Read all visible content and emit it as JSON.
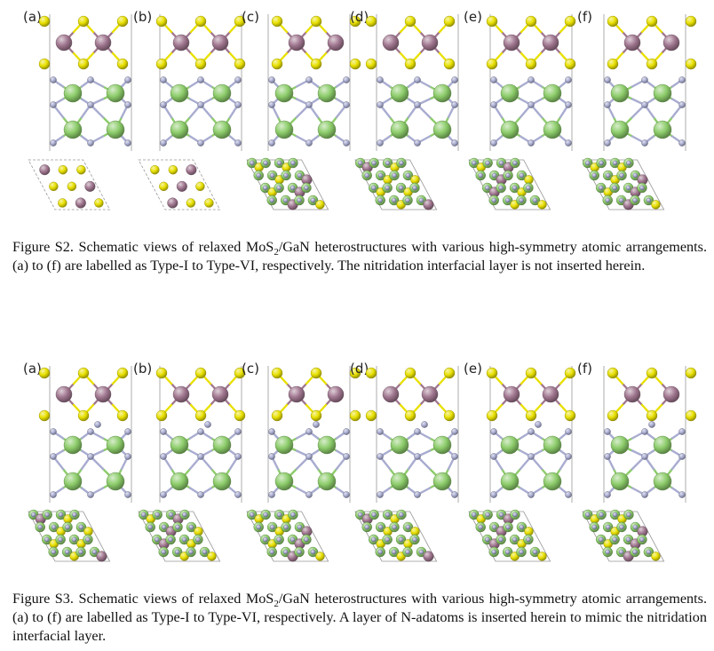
{
  "figure_s2": {
    "panel_labels": [
      "(a)",
      "(b)",
      "(c)",
      "(d)",
      "(e)",
      "(f)"
    ],
    "caption": {
      "lead": "Figure S2. Schematic views of relaxed MoS",
      "sub": "2",
      "rest": "/GaN heterostructures with various high-symmetry atomic arrangements. (a) to (f) are labelled as Type-I to Type-VI, respectively. The nitridation interfacial layer is not inserted herein."
    }
  },
  "figure_s3": {
    "panel_labels": [
      "(a)",
      "(b)",
      "(c)",
      "(d)",
      "(e)",
      "(f)"
    ],
    "caption": {
      "lead": "Figure S3. Schematic views of relaxed MoS",
      "sub": "2",
      "rest": "/GaN heterostructures with various high-symmetry atomic arrangements. (a) to (f) are labelled as Type-I to Type-VI, respectively. A layer of N-adatoms is inserted herein to mimic the nitridation interfacial layer."
    }
  },
  "colors": {
    "mo": "#a0768f",
    "s": "#e8e000",
    "ga": "#8ccc6a",
    "n": "#a9acd0",
    "cell_line": "#999999"
  }
}
